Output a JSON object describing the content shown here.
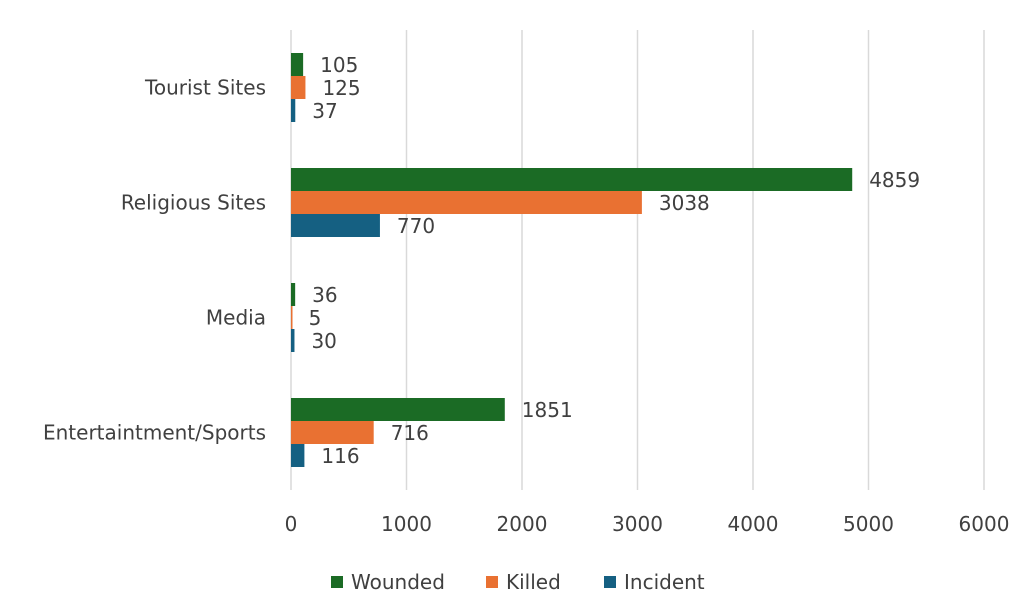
{
  "chart_data": {
    "type": "bar",
    "orientation": "horizontal",
    "categories": [
      "Tourist Sites",
      "Religious Sites",
      "Media",
      "Entertaintment/Sports"
    ],
    "series": [
      {
        "name": "Wounded",
        "color": "#1b6b25",
        "values": [
          105,
          4859,
          36,
          1851
        ]
      },
      {
        "name": "Killed",
        "color": "#e97132",
        "values": [
          125,
          3038,
          5,
          716
        ]
      },
      {
        "name": "Incident",
        "color": "#156082",
        "values": [
          37,
          770,
          30,
          116
        ]
      }
    ],
    "xlim": [
      0,
      6000
    ],
    "xticks": [
      "0",
      "1000",
      "2000",
      "3000",
      "4000",
      "5000",
      "6000"
    ],
    "grid": true,
    "data_labels": true,
    "legend": "bottom"
  }
}
